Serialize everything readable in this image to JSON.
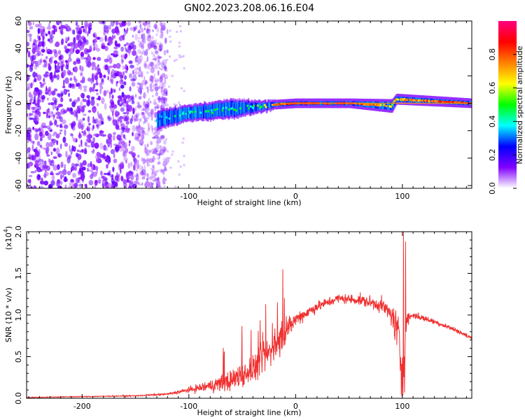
{
  "title": "GN02.2023.208.06.16.E04",
  "chart_data": [
    {
      "type": "heatmap",
      "panel": "spectrogram",
      "xlabel": "Height of straight line (km)",
      "ylabel": "Frequency (Hz)",
      "xlim": [
        -252,
        165
      ],
      "ylim": [
        -62,
        60
      ],
      "xticks": [
        -200,
        -100,
        0,
        100
      ],
      "yticks": [
        -60,
        -40,
        -20,
        0,
        20,
        40,
        60
      ],
      "colorbar": {
        "label": "Normalized spectral amplitude",
        "range": [
          0,
          1
        ],
        "ticks": [
          "0.0",
          "0.2",
          "0.4",
          "0.6",
          "0.8"
        ],
        "colors": [
          "#ffffff",
          "#8000ff",
          "#0000ff",
          "#00ffff",
          "#00ff00",
          "#ffff00",
          "#ff8000",
          "#ff0000",
          "#ff0080"
        ]
      },
      "features": {
        "noise_region_km": [
          -252,
          -130
        ],
        "signal_start_km": -130,
        "signal_track": [
          {
            "x": -130,
            "y": -12,
            "half_width": 5,
            "amp": 0.35
          },
          {
            "x": -100,
            "y": -7,
            "half_width": 4,
            "amp": 0.4
          },
          {
            "x": -60,
            "y": -4,
            "half_width": 5,
            "amp": 0.4
          },
          {
            "x": -40,
            "y": -3,
            "half_width": 3,
            "amp": 0.45
          },
          {
            "x": -20,
            "y": -1,
            "half_width": 1.5,
            "amp": 0.7
          },
          {
            "x": 0,
            "y": 0,
            "half_width": 1.5,
            "amp": 0.9
          },
          {
            "x": 50,
            "y": 0,
            "half_width": 1.5,
            "amp": 0.9
          },
          {
            "x": 90,
            "y": -2,
            "half_width": 3,
            "amp": 0.6
          },
          {
            "x": 94,
            "y": 3,
            "half_width": 2,
            "amp": 0.7
          },
          {
            "x": 165,
            "y": 0,
            "half_width": 1.5,
            "amp": 0.85
          }
        ]
      }
    },
    {
      "type": "line",
      "panel": "snr",
      "xlabel": "Height of straight line (km)",
      "ylabel": "SNR (10 * v/v)",
      "y_multiplier": "(x10",
      "y_multiplier_exp": "4",
      "y_multiplier_close": ")",
      "xlim": [
        -252,
        165
      ],
      "ylim": [
        0,
        2.0
      ],
      "xticks": [
        -200,
        -100,
        0,
        100
      ],
      "yticks": [
        "0.0",
        "0.5",
        "1.0",
        "1.5",
        "2.0"
      ],
      "color": "#f03030",
      "envelope": {
        "x": [
          -252,
          -150,
          -120,
          -100,
          -80,
          -60,
          -40,
          -25,
          -12,
          0,
          20,
          40,
          60,
          80,
          90,
          96,
          100,
          104,
          110,
          130,
          150,
          165
        ],
        "base": [
          0.01,
          0.03,
          0.05,
          0.1,
          0.15,
          0.22,
          0.35,
          0.55,
          0.75,
          0.95,
          1.1,
          1.2,
          1.18,
          1.12,
          1.0,
          0.75,
          0.3,
          0.95,
          1.0,
          0.92,
          0.82,
          0.72
        ],
        "noise": [
          0.004,
          0.006,
          0.01,
          0.03,
          0.07,
          0.12,
          0.15,
          0.18,
          0.16,
          0.08,
          0.06,
          0.05,
          0.06,
          0.08,
          0.12,
          0.3,
          0.35,
          0.08,
          0.04,
          0.03,
          0.025,
          0.02
        ]
      },
      "spikes": [
        {
          "x": -12,
          "y": 1.55
        },
        {
          "x": -28,
          "y": 1.13
        },
        {
          "x": 101,
          "y": 2.0
        },
        {
          "x": 103,
          "y": 1.88
        },
        {
          "x": 99,
          "y": 0.05
        },
        {
          "x": 102,
          "y": 0.07
        }
      ]
    }
  ]
}
